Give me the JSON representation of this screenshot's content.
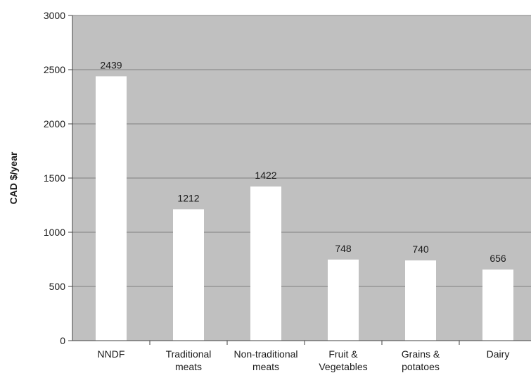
{
  "chart_data": {
    "type": "bar",
    "title": "",
    "xlabel": "",
    "ylabel": "CAD $/year",
    "categories": [
      [
        "NNDF"
      ],
      [
        "Traditional",
        "meats"
      ],
      [
        "Non-traditional",
        "meats"
      ],
      [
        "Fruit &",
        "Vegetables"
      ],
      [
        "Grains &",
        "potatoes"
      ],
      [
        "Dairy"
      ]
    ],
    "values": [
      2439,
      1212,
      1422,
      748,
      740,
      656
    ],
    "ylim": [
      0,
      3000
    ],
    "yticks": [
      0,
      500,
      1000,
      1500,
      2000,
      2500,
      3000
    ],
    "grid": true,
    "legend": "none",
    "colors": {
      "plot_background": "#c0c0c0",
      "bar_fill": "#ffffff",
      "gridline": "#7f7f7f",
      "axis": "#404040",
      "text": "#1a1a1a"
    }
  }
}
